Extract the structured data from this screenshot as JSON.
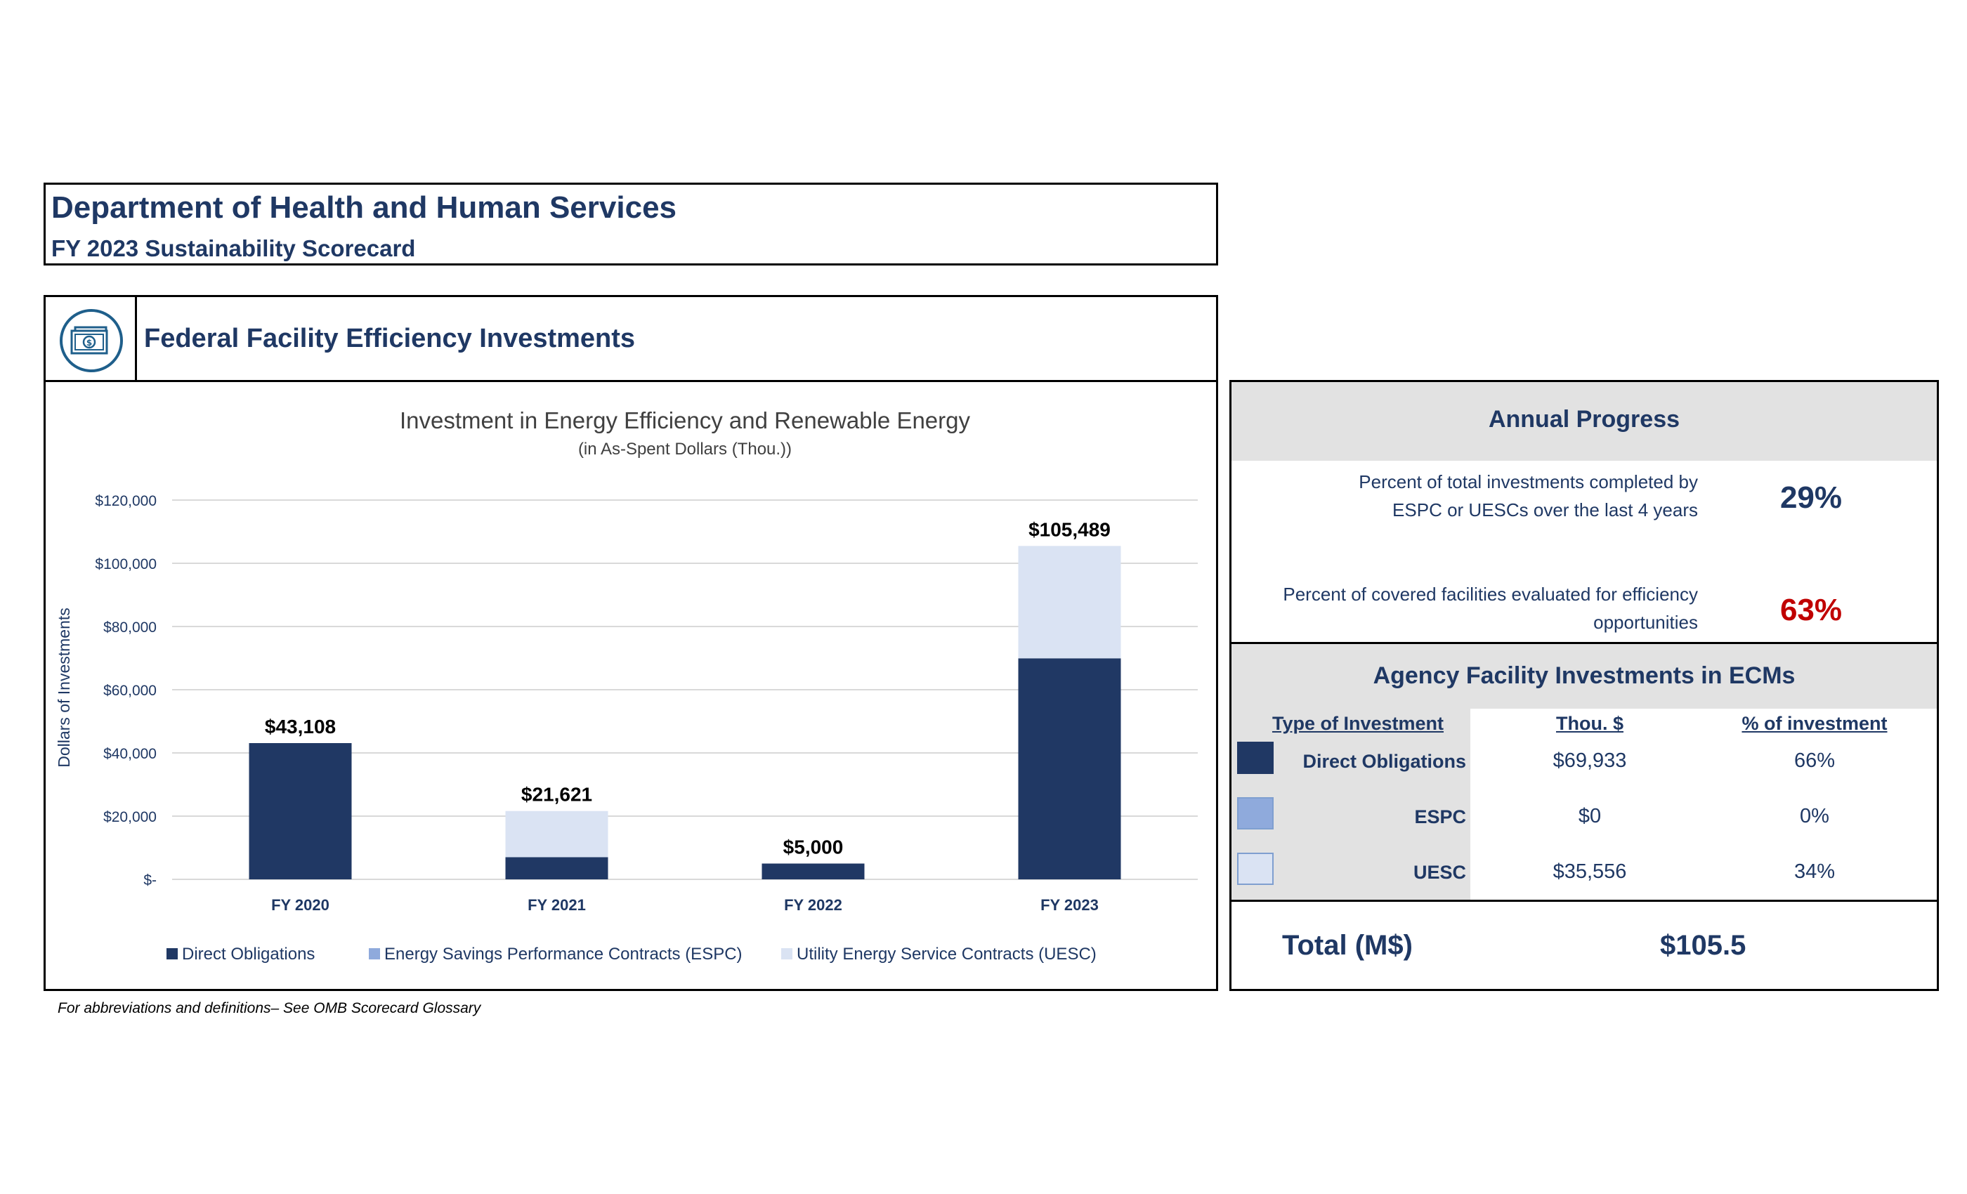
{
  "header": {
    "title": "Department of Health and Human Services",
    "subtitle": "FY 2023 Sustainability Scorecard"
  },
  "section": {
    "title": "Federal Facility Efficiency Investments",
    "icon": "money-bill-icon"
  },
  "chart_data": {
    "type": "bar",
    "stacked": true,
    "title": "Investment in Energy Efficiency and Renewable Energy",
    "subtitle": "(in As-Spent Dollars (Thou.))",
    "xlabel": "",
    "ylabel": "Dollars of Investments",
    "categories": [
      "FY 2020",
      "FY 2021",
      "FY 2022",
      "FY 2023"
    ],
    "series": [
      {
        "name": "Direct Obligations",
        "color": "#203864",
        "values": [
          43108,
          7000,
          5000,
          69933
        ]
      },
      {
        "name": "Energy Savings Performance Contracts (ESPC)",
        "color": "#8faadc",
        "values": [
          0,
          0,
          0,
          0
        ]
      },
      {
        "name": "Utility Energy Service Contracts (UESC)",
        "color": "#dae3f3",
        "values": [
          0,
          14621,
          0,
          35556
        ]
      }
    ],
    "totals": [
      43108,
      21621,
      5000,
      105489
    ],
    "total_labels": [
      "$43,108",
      "$21,621",
      "$5,000",
      "$105,489"
    ],
    "ylim": [
      0,
      120000
    ],
    "yticks": [
      0,
      20000,
      40000,
      60000,
      80000,
      100000,
      120000
    ],
    "ytick_labels": [
      "$-",
      "$20,000",
      "$40,000",
      "$60,000",
      "$80,000",
      "$100,000",
      "$120,000"
    ],
    "grid": true,
    "legend_position": "bottom"
  },
  "annual_progress": {
    "title": "Annual Progress",
    "metrics": [
      {
        "line1": "Percent of total investments completed by",
        "line2": "ESPC or UESCs over the last 4 years",
        "value": "29%",
        "color": "#1f3864"
      },
      {
        "line1": "Percent of covered facilities evaluated for efficiency",
        "line2": "opportunities",
        "value": "63%",
        "color": "#c00000"
      }
    ]
  },
  "ecm": {
    "title": "Agency Facility Investments in ECMs",
    "columns": [
      "Type of Investment",
      "Thou. $",
      "% of investment"
    ],
    "rows": [
      {
        "type": "Direct Obligations",
        "thou": "$69,933",
        "pct": "66%",
        "color": "#203864"
      },
      {
        "type": "ESPC",
        "thou": "$0",
        "pct": "0%",
        "color": "#8faadc"
      },
      {
        "type": "UESC",
        "thou": "$35,556",
        "pct": "34%",
        "color": "#dae3f3"
      }
    ]
  },
  "total": {
    "label": "Total (M$)",
    "value": "$105.5"
  },
  "footnote": "For abbreviations and definitions– See OMB Scorecard Glossary"
}
